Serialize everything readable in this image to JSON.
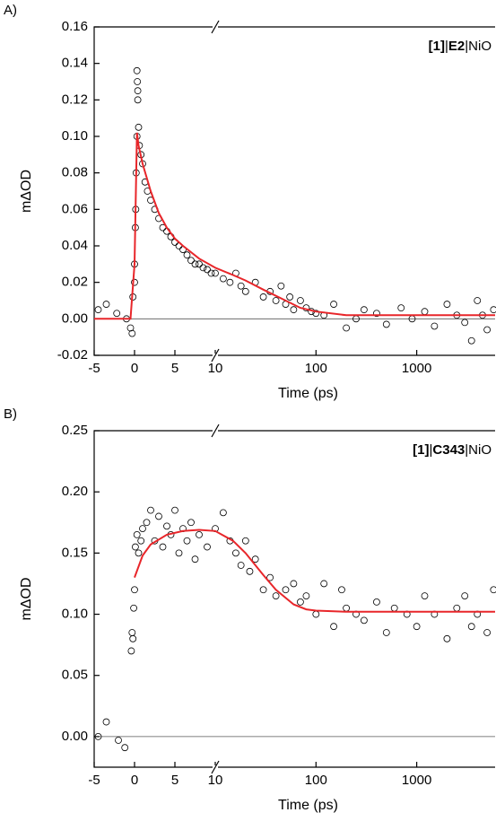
{
  "chart_data": [
    {
      "type": "scatter",
      "panel": "A)",
      "xlabel": "Time (ps)",
      "ylabel": "mΔOD",
      "annotation": [
        {
          "text": "[1]",
          "bold": true
        },
        {
          "text": "|"
        },
        {
          "text": "E2",
          "bold": true
        },
        {
          "text": "|NiO"
        }
      ],
      "xscale": "linear-log",
      "xbreak": 10,
      "xlim": [
        -5,
        6000
      ],
      "xticks": [
        -5,
        0,
        5,
        10,
        100,
        1000
      ],
      "ylim": [
        -0.02,
        0.16
      ],
      "yticks": [
        -0.02,
        {
          "value": 0,
          "label": "0.00"
        },
        0.02,
        0.04,
        0.06,
        0.08,
        {
          "value": 0.1,
          "label": "0.10"
        },
        0.12,
        0.14,
        0.16
      ],
      "zero_line": true,
      "series": [
        {
          "name": "data",
          "color": "#000000",
          "mode": "markers",
          "x": [
            -4.5,
            -3.5,
            -2.2,
            -1,
            -0.5,
            -0.3,
            -0.2,
            0,
            0,
            0.1,
            0.15,
            0.2,
            0.3,
            0.3,
            0.35,
            0.4,
            0.4,
            0.5,
            0.6,
            0.8,
            1,
            1.3,
            1.6,
            2,
            2.5,
            3,
            3.5,
            4,
            4.5,
            5,
            5.5,
            6,
            6.5,
            7,
            7.5,
            8,
            8.5,
            9,
            9.5,
            10,
            12,
            14,
            16,
            18,
            20,
            25,
            30,
            35,
            40,
            45,
            50,
            55,
            60,
            70,
            80,
            90,
            100,
            120,
            150,
            200,
            250,
            300,
            400,
            500,
            700,
            900,
            1200,
            1500,
            2000,
            2500,
            3000,
            3500,
            4000,
            4500,
            5000,
            5800
          ],
          "values": [
            0.005,
            0.008,
            0.003,
            0,
            -0.005,
            -0.008,
            0.012,
            0.02,
            0.03,
            0.05,
            0.06,
            0.08,
            0.1,
            0.136,
            0.13,
            0.125,
            0.12,
            0.105,
            0.095,
            0.09,
            0.085,
            0.075,
            0.07,
            0.065,
            0.06,
            0.055,
            0.05,
            0.048,
            0.045,
            0.042,
            0.04,
            0.038,
            0.035,
            0.032,
            0.03,
            0.03,
            0.028,
            0.027,
            0.025,
            0.025,
            0.022,
            0.02,
            0.025,
            0.018,
            0.015,
            0.02,
            0.012,
            0.015,
            0.01,
            0.018,
            0.008,
            0.012,
            0.005,
            0.01,
            0.006,
            0.004,
            0.003,
            0.002,
            0.008,
            -0.005,
            0,
            0.005,
            0.003,
            -0.003,
            0.006,
            0,
            0.004,
            -0.004,
            0.008,
            0.002,
            -0.002,
            -0.012,
            0.01,
            0.002,
            -0.006,
            0.005
          ]
        },
        {
          "name": "fit",
          "color": "#e8262a",
          "mode": "line",
          "x": [
            -5,
            -0.5,
            0,
            0.3,
            0.5,
            1,
            2,
            3,
            4,
            5,
            6,
            8,
            10,
            15,
            20,
            30,
            50,
            70,
            100,
            200,
            500,
            1000,
            6000
          ],
          "values": [
            0,
            0,
            0.03,
            0.102,
            0.095,
            0.085,
            0.07,
            0.058,
            0.05,
            0.044,
            0.04,
            0.033,
            0.028,
            0.024,
            0.021,
            0.016,
            0.01,
            0.006,
            0.004,
            0.002,
            0.002,
            0.002,
            0.002
          ]
        }
      ]
    },
    {
      "type": "scatter",
      "panel": "B)",
      "xlabel": "Time (ps)",
      "ylabel": "mΔOD",
      "annotation": [
        {
          "text": "[1]",
          "bold": true
        },
        {
          "text": "|"
        },
        {
          "text": "C343",
          "bold": true
        },
        {
          "text": "|NiO"
        }
      ],
      "xscale": "linear-log",
      "xbreak": 10,
      "xlim": [
        -5,
        6000
      ],
      "xticks": [
        -5,
        0,
        5,
        10,
        100,
        1000
      ],
      "ylim": [
        -0.025,
        0.25
      ],
      "yticks": [
        {
          "value": 0,
          "label": "0.00"
        },
        0.05,
        {
          "value": 0.1,
          "label": "0.10"
        },
        0.15,
        {
          "value": 0.2,
          "label": "0.20"
        },
        0.25
      ],
      "zero_line": true,
      "series": [
        {
          "name": "data",
          "color": "#000000",
          "mode": "markers",
          "x": [
            -4.5,
            -3.5,
            -2,
            -1.2,
            -0.4,
            -0.3,
            -0.2,
            -0.1,
            0,
            0.1,
            0.3,
            0.5,
            0.8,
            1,
            1.5,
            2,
            2.5,
            3,
            3.5,
            4,
            4.5,
            5,
            5.5,
            6,
            6.5,
            7,
            7.5,
            8,
            9,
            10,
            12,
            14,
            16,
            18,
            20,
            22,
            25,
            30,
            35,
            40,
            50,
            60,
            70,
            80,
            100,
            120,
            150,
            180,
            200,
            250,
            300,
            400,
            500,
            600,
            800,
            1000,
            1200,
            1500,
            2000,
            2500,
            3000,
            3500,
            4000,
            5000,
            5800
          ],
          "values": [
            0,
            0.012,
            -0.003,
            -0.009,
            0.07,
            0.085,
            0.08,
            0.105,
            0.12,
            0.155,
            0.165,
            0.15,
            0.16,
            0.17,
            0.175,
            0.185,
            0.16,
            0.18,
            0.155,
            0.172,
            0.165,
            0.185,
            0.15,
            0.17,
            0.16,
            0.175,
            0.145,
            0.165,
            0.155,
            0.17,
            0.183,
            0.16,
            0.15,
            0.14,
            0.16,
            0.135,
            0.145,
            0.12,
            0.13,
            0.115,
            0.12,
            0.125,
            0.11,
            0.115,
            0.1,
            0.125,
            0.09,
            0.12,
            0.105,
            0.1,
            0.095,
            0.11,
            0.085,
            0.105,
            0.1,
            0.09,
            0.115,
            0.1,
            0.08,
            0.105,
            0.115,
            0.09,
            0.1,
            0.085,
            0.12
          ]
        },
        {
          "name": "fit",
          "color": "#e8262a",
          "mode": "line",
          "x": [
            0,
            1,
            2,
            4,
            6,
            8,
            10,
            15,
            20,
            30,
            40,
            60,
            80,
            100,
            200,
            500,
            1000,
            6000
          ],
          "values": [
            0.13,
            0.148,
            0.157,
            0.165,
            0.168,
            0.169,
            0.168,
            0.16,
            0.15,
            0.132,
            0.12,
            0.108,
            0.104,
            0.103,
            0.102,
            0.102,
            0.102,
            0.102
          ]
        }
      ]
    }
  ]
}
